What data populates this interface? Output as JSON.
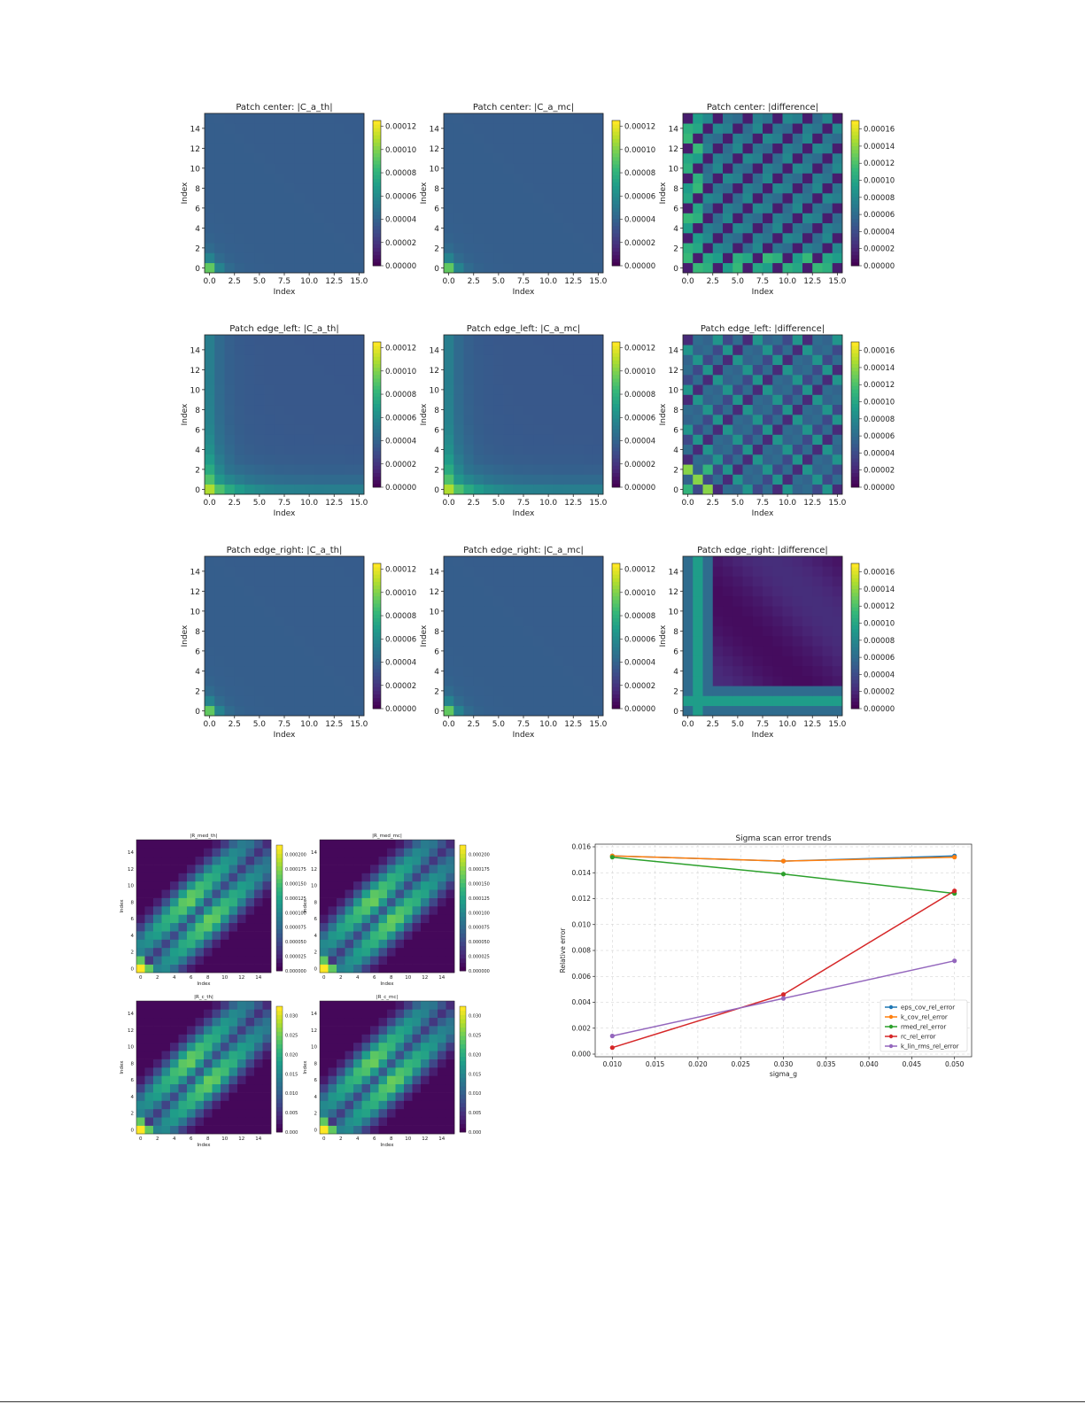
{
  "heatmap_grid": {
    "colorbar_ticks_cov": [
      "0.00000",
      "0.00002",
      "0.00004",
      "0.00006",
      "0.00008",
      "0.00010",
      "0.00012"
    ],
    "colorbar_ticks_diff": [
      "0.00000",
      "0.00002",
      "0.00004",
      "0.00006",
      "0.00008",
      "0.00010",
      "0.00012",
      "0.00014",
      "0.00016"
    ],
    "x_ticks": [
      "0.0",
      "2.5",
      "5.0",
      "7.5",
      "10.0",
      "12.5",
      "15.0"
    ],
    "y_ticks": [
      "0",
      "2",
      "4",
      "6",
      "8",
      "10",
      "12",
      "14"
    ],
    "axis_label": "Index",
    "rows": [
      {
        "patch": "center",
        "titles": [
          "Patch center: |C_a_th|",
          "Patch center: |C_a_mc|",
          "Patch center: |difference|"
        ]
      },
      {
        "patch": "edge_left",
        "titles": [
          "Patch edge_left: |C_a_th|",
          "Patch edge_left: |C_a_mc|",
          "Patch edge_left: |difference|"
        ]
      },
      {
        "patch": "edge_right",
        "titles": [
          "Patch edge_right: |C_a_th|",
          "Patch edge_right: |C_a_mc|",
          "Patch edge_right: |difference|"
        ]
      }
    ]
  },
  "small_heatmaps": {
    "axis_label": "Index",
    "x_ticks": [
      "0",
      "2",
      "4",
      "6",
      "8",
      "10",
      "12",
      "14"
    ],
    "y_ticks": [
      "0",
      "2",
      "4",
      "6",
      "8",
      "10",
      "12",
      "14"
    ],
    "panels": [
      {
        "title": "|R_med_th|",
        "cbar": [
          "0.000000",
          "0.000025",
          "0.000050",
          "0.000075",
          "0.000100",
          "0.000125",
          "0.000150",
          "0.000175",
          "0.000200"
        ]
      },
      {
        "title": "|R_med_mc|",
        "cbar": [
          "0.000000",
          "0.000025",
          "0.000050",
          "0.000075",
          "0.000100",
          "0.000125",
          "0.000150",
          "0.000175",
          "0.000200"
        ]
      },
      {
        "title": "|R_c_th|",
        "cbar": [
          "0.000",
          "0.005",
          "0.010",
          "0.015",
          "0.020",
          "0.025",
          "0.030"
        ]
      },
      {
        "title": "|R_c_mc|",
        "cbar": [
          "0.000",
          "0.005",
          "0.010",
          "0.015",
          "0.020",
          "0.025",
          "0.030"
        ]
      }
    ]
  },
  "chart_data": {
    "type": "line",
    "title": "Sigma scan error trends",
    "xlabel": "sigma_g",
    "ylabel": "Relative error",
    "x": [
      0.01,
      0.03,
      0.05
    ],
    "xlim": [
      0.008,
      0.052
    ],
    "ylim": [
      0,
      0.016
    ],
    "x_ticks": [
      "0.010",
      "0.015",
      "0.020",
      "0.025",
      "0.030",
      "0.035",
      "0.040",
      "0.045",
      "0.050"
    ],
    "y_ticks": [
      "0.000",
      "0.002",
      "0.004",
      "0.006",
      "0.008",
      "0.010",
      "0.012",
      "0.014",
      "0.016"
    ],
    "grid": true,
    "legend_position": "bottom-right",
    "series": [
      {
        "name": "eps_cov_rel_error",
        "color": "#1f77b4",
        "values": [
          0.0153,
          0.0149,
          0.0153
        ]
      },
      {
        "name": "k_cov_rel_error",
        "color": "#ff7f0e",
        "values": [
          0.0153,
          0.0149,
          0.0152
        ]
      },
      {
        "name": "rmed_rel_error",
        "color": "#2ca02c",
        "values": [
          0.0152,
          0.0139,
          0.0124
        ]
      },
      {
        "name": "rc_rel_error",
        "color": "#d62728",
        "values": [
          0.0005,
          0.0046,
          0.0126
        ]
      },
      {
        "name": "k_lin_rms_rel_error",
        "color": "#9467bd",
        "values": [
          0.0014,
          0.0043,
          0.0072
        ]
      }
    ]
  }
}
